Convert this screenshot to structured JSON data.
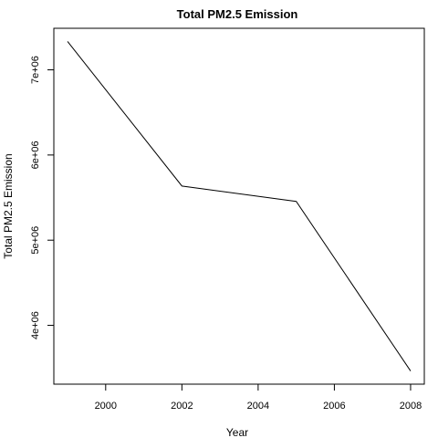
{
  "chart_data": {
    "type": "line",
    "title": "Total PM2.5 Emission",
    "xlabel": "Year",
    "ylabel": "Total PM2.5 Emission",
    "x": [
      1999,
      2002,
      2005,
      2008
    ],
    "series": [
      {
        "values": [
          7332967,
          5635780,
          5454703,
          3464206
        ]
      }
    ],
    "xticks": [
      2000,
      2002,
      2004,
      2006,
      2008
    ],
    "xtick_labels": [
      "2000",
      "2002",
      "2004",
      "2006",
      "2008"
    ],
    "yticks": [
      4000000,
      5000000,
      6000000,
      7000000
    ],
    "ytick_labels": [
      "4e+06",
      "5e+06",
      "6e+06",
      "7e+06"
    ],
    "xlim": [
      1998.64,
      2008.36
    ],
    "ylim": [
      3309436,
      7487737
    ],
    "grid": false,
    "line_color": "#000000"
  }
}
